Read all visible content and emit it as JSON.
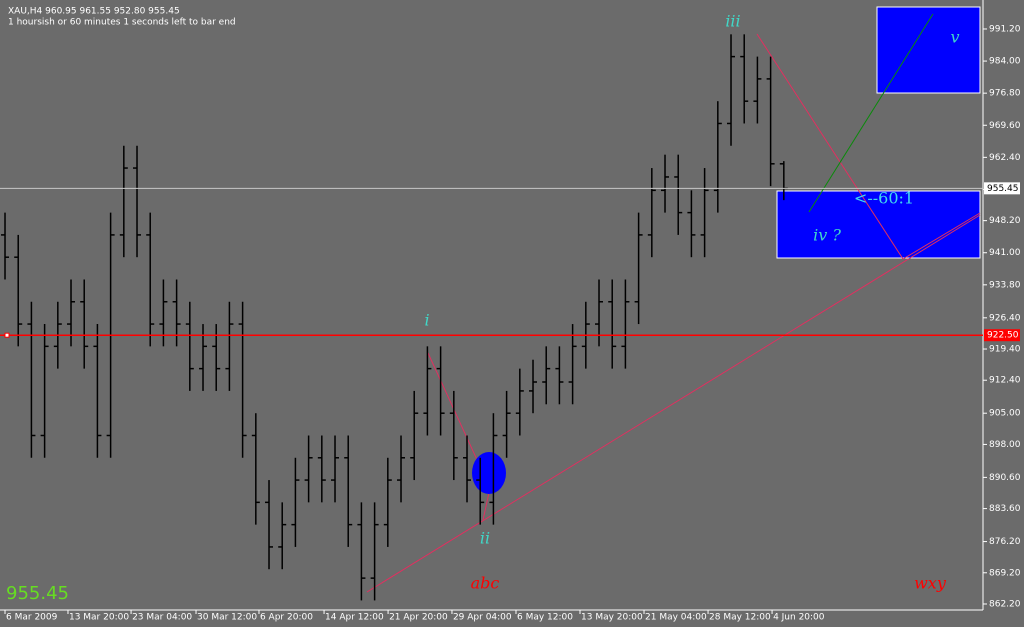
{
  "chart_data": {
    "type": "ohlc",
    "title": "XAU,H4  960.95 961.55 952.80 955.45",
    "subtitle": "1 hoursish or 60 minutes 1 seconds left to bar end",
    "open": [
      945,
      940,
      925,
      900,
      920,
      925,
      930,
      920,
      900,
      945,
      960,
      945,
      925,
      930,
      925,
      915,
      920,
      915,
      925,
      900,
      885,
      875,
      880,
      890,
      895,
      890,
      895,
      880,
      868,
      880,
      890,
      895,
      905,
      915,
      905,
      895,
      890,
      885,
      900,
      905,
      910,
      912,
      915,
      912,
      920,
      925,
      930,
      920,
      930,
      945,
      955,
      958,
      950,
      945,
      955,
      970,
      985,
      975,
      980,
      960.95
    ],
    "high": [
      950,
      945,
      930,
      925,
      930,
      935,
      935,
      925,
      950,
      965,
      965,
      950,
      935,
      935,
      930,
      925,
      925,
      930,
      930,
      905,
      890,
      885,
      895,
      900,
      900,
      900,
      900,
      885,
      885,
      895,
      900,
      910,
      920,
      920,
      910,
      900,
      895,
      905,
      910,
      915,
      917,
      920,
      920,
      925,
      930,
      935,
      935,
      935,
      950,
      960,
      963,
      963,
      955,
      960,
      975,
      990,
      990,
      985,
      985,
      961.55
    ],
    "low": [
      935,
      920,
      895,
      895,
      915,
      920,
      915,
      895,
      895,
      940,
      940,
      920,
      920,
      920,
      910,
      910,
      910,
      910,
      895,
      880,
      870,
      870,
      875,
      885,
      885,
      885,
      875,
      863,
      863,
      875,
      885,
      890,
      900,
      900,
      890,
      885,
      880,
      880,
      895,
      900,
      905,
      907,
      907,
      907,
      915,
      920,
      915,
      915,
      925,
      940,
      950,
      945,
      940,
      940,
      950,
      965,
      970,
      970,
      955.95,
      952.8
    ],
    "close": [
      940,
      925,
      900,
      920,
      925,
      930,
      920,
      900,
      945,
      960,
      945,
      925,
      930,
      925,
      915,
      920,
      915,
      925,
      900,
      885,
      875,
      880,
      890,
      895,
      890,
      895,
      880,
      868,
      880,
      890,
      895,
      905,
      915,
      905,
      895,
      890,
      885,
      900,
      905,
      910,
      912,
      915,
      912,
      920,
      925,
      930,
      920,
      930,
      945,
      955,
      958,
      950,
      945,
      955,
      970,
      985,
      975,
      980,
      960.95,
      955.45
    ],
    "color": "#000000",
    "xlim": [
      -0.38,
      74.09
    ],
    "xticks": [
      {
        "value": 0,
        "label": "6 Mar 2009"
      },
      {
        "value": 4.77,
        "label": "13 Mar 20:00"
      },
      {
        "value": 9.55,
        "label": "23 Mar 04:00"
      },
      {
        "value": 14.47,
        "label": "30 Mar 12:00"
      },
      {
        "value": 19.24,
        "label": "6 Apr 20:00"
      },
      {
        "value": 24.17,
        "label": "14 Apr 12:00"
      },
      {
        "value": 29.02,
        "label": "21 Apr 20:00"
      },
      {
        "value": 33.86,
        "label": "29 Apr 04:00"
      },
      {
        "value": 38.71,
        "label": "6 May 12:00"
      },
      {
        "value": 43.56,
        "label": "13 May 20:00"
      },
      {
        "value": 48.41,
        "label": "21 May 04:00"
      },
      {
        "value": 53.26,
        "label": "28 May 12:00"
      },
      {
        "value": 58.11,
        "label": "4 Jun 20:00"
      }
    ],
    "ylim": [
      860.85,
      997.7
    ],
    "yticks": [
      {
        "value": 862.2,
        "label": "862.20"
      },
      {
        "value": 869.2,
        "label": "869.20"
      },
      {
        "value": 876.2,
        "label": "876.20"
      },
      {
        "value": 883.6,
        "label": "883.60"
      },
      {
        "value": 890.6,
        "label": "890.60"
      },
      {
        "value": 898,
        "label": "898.00"
      },
      {
        "value": 905,
        "label": "905.00"
      },
      {
        "value": 912.4,
        "label": "912.40"
      },
      {
        "value": 919.4,
        "label": "919.40"
      },
      {
        "value": 926.4,
        "label": "926.40"
      },
      {
        "value": 933.8,
        "label": "933.80"
      },
      {
        "value": 941,
        "label": "941.00"
      },
      {
        "value": 948.2,
        "label": "948.20"
      },
      {
        "value": 955.2,
        "label": "955.20"
      },
      {
        "value": 962.4,
        "label": "962.40"
      },
      {
        "value": 969.6,
        "label": "969.60"
      },
      {
        "value": 976.8,
        "label": "976.80"
      },
      {
        "value": 984,
        "label": "984.00"
      },
      {
        "value": 991.2,
        "label": "991.20"
      }
    ],
    "last": {
      "value": 955.45,
      "label": "955.45"
    },
    "hline": {
      "value": 922.5,
      "label": "922.50",
      "color": "#ff0000"
    },
    "annotations": [
      "iii",
      "i",
      "ii",
      "abc",
      "v",
      "iv ?",
      "<--60:1",
      "wxy"
    ]
  }
}
